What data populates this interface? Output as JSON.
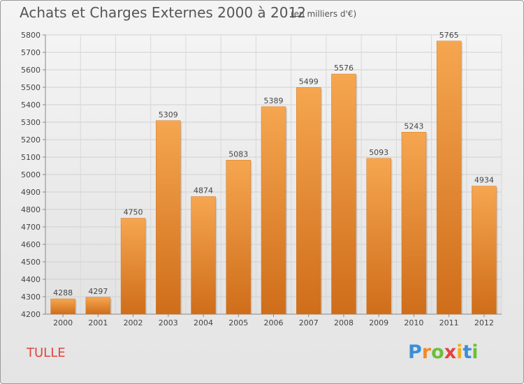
{
  "chart_data": {
    "type": "bar",
    "title": "Achats et Charges Externes 2000 à 2012",
    "unit_note": "(en milliers d'€)",
    "categories": [
      "2000",
      "2001",
      "2002",
      "2003",
      "2004",
      "2005",
      "2006",
      "2007",
      "2008",
      "2009",
      "2010",
      "2011",
      "2012"
    ],
    "values": [
      4288,
      4297,
      4750,
      5309,
      4874,
      5083,
      5389,
      5499,
      5576,
      5093,
      5243,
      5765,
      4934
    ],
    "ylim": [
      4200,
      5800
    ],
    "yticks": [
      "4200",
      "4300",
      "4400",
      "4500",
      "4600",
      "4700",
      "4800",
      "4900",
      "5000",
      "5100",
      "5200",
      "5300",
      "5400",
      "5500",
      "5600",
      "5700",
      "5800"
    ],
    "xlabel": "",
    "ylabel": "",
    "grid": true,
    "bar_color": "#f0943a"
  },
  "footer": {
    "city": "TULLE",
    "brand_letters": [
      "P",
      "r",
      "o",
      "x",
      "i",
      "t",
      "i"
    ],
    "brand_colors": [
      "#3a8fd8",
      "#f08a2a",
      "#6cbf3a",
      "#e84040",
      "#f0b020",
      "#3a8fd8",
      "#6cbf3a"
    ]
  }
}
